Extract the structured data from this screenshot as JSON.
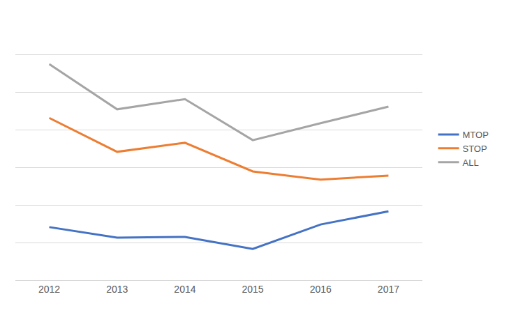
{
  "chart_data": {
    "type": "line",
    "categories": [
      "2012",
      "2013",
      "2014",
      "2015",
      "2016",
      "2017"
    ],
    "series": [
      {
        "name": "MTOP",
        "color": "#4472c4",
        "values": [
          1.41,
          1.13,
          1.15,
          0.83,
          1.48,
          1.83
        ]
      },
      {
        "name": "STOP",
        "color": "#ed7d31",
        "values": [
          4.31,
          3.41,
          3.65,
          2.89,
          2.67,
          2.78
        ]
      },
      {
        "name": "ALL",
        "color": "#a5a5a5",
        "values": [
          5.74,
          4.54,
          4.81,
          3.72,
          4.17,
          4.61
        ]
      }
    ],
    "ylim": [
      0,
      7
    ],
    "yticks": [
      0,
      1,
      2,
      3,
      4,
      5,
      6,
      7
    ],
    "grid": true,
    "legend": "right",
    "tick_labels": "x"
  }
}
